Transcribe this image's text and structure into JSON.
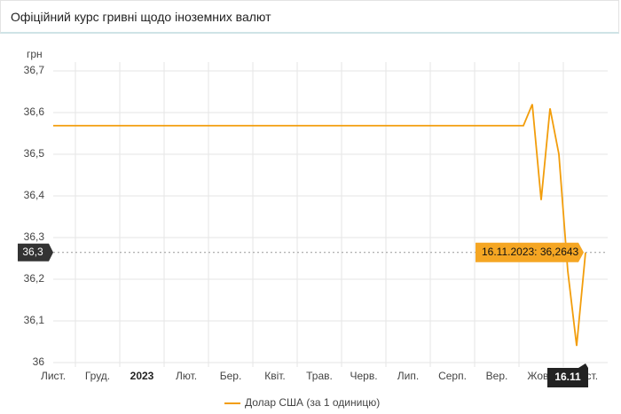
{
  "chart_data": {
    "type": "line",
    "title": "Офіційний курс гривні щодо іноземних валют",
    "y_label": "грн",
    "categories": [
      "Лист.",
      null,
      null,
      null,
      null,
      "Груд.",
      null,
      null,
      null,
      null,
      "2023",
      null,
      null,
      null,
      null,
      "Лют.",
      null,
      null,
      null,
      null,
      "Бер.",
      null,
      null,
      null,
      null,
      "Квіт.",
      null,
      null,
      null,
      null,
      "Трав.",
      null,
      null,
      null,
      null,
      "Черв.",
      null,
      null,
      null,
      null,
      "Лип.",
      null,
      null,
      null,
      null,
      "Серп.",
      null,
      null,
      null,
      null,
      "Вер.",
      null,
      null,
      null,
      null,
      "Жовт.",
      null,
      null,
      null,
      null,
      "Лист."
    ],
    "series": [
      {
        "name": "Долар США (за 1 одиницю)",
        "color": "#f29d0b",
        "values": [
          36.5686,
          36.5686,
          36.5686,
          36.5686,
          36.5686,
          36.5686,
          36.5686,
          36.5686,
          36.5686,
          36.5686,
          36.5686,
          36.5686,
          36.5686,
          36.5686,
          36.5686,
          36.5686,
          36.5686,
          36.5686,
          36.5686,
          36.5686,
          36.5686,
          36.5686,
          36.5686,
          36.5686,
          36.5686,
          36.5686,
          36.5686,
          36.5686,
          36.5686,
          36.5686,
          36.5686,
          36.5686,
          36.5686,
          36.5686,
          36.5686,
          36.5686,
          36.5686,
          36.5686,
          36.5686,
          36.5686,
          36.5686,
          36.5686,
          36.5686,
          36.5686,
          36.5686,
          36.5686,
          36.5686,
          36.5686,
          36.5686,
          36.5686,
          36.5686,
          36.5686,
          36.5686,
          36.5686,
          36.62,
          36.39,
          36.61,
          36.5,
          36.22,
          36.04,
          36.2643
        ]
      }
    ],
    "ylim": [
      36,
      36.7
    ],
    "yticks": [
      36,
      {
        "value": 36.1,
        "label": "36,1"
      },
      {
        "value": 36.2,
        "label": "36,2"
      },
      {
        "value": 36.3,
        "label": "36,3"
      },
      {
        "value": 36.4,
        "label": "36,4"
      },
      {
        "value": 36.5,
        "label": "36,5"
      },
      {
        "value": 36.6,
        "label": "36,6"
      },
      {
        "value": 36.7,
        "label": "36,7"
      }
    ],
    "grid": true,
    "legend": "bottom",
    "crosshair": {
      "x_label": "16.11",
      "y_label": "36,3",
      "tooltip": "16.11.2023: 36,2643"
    }
  }
}
